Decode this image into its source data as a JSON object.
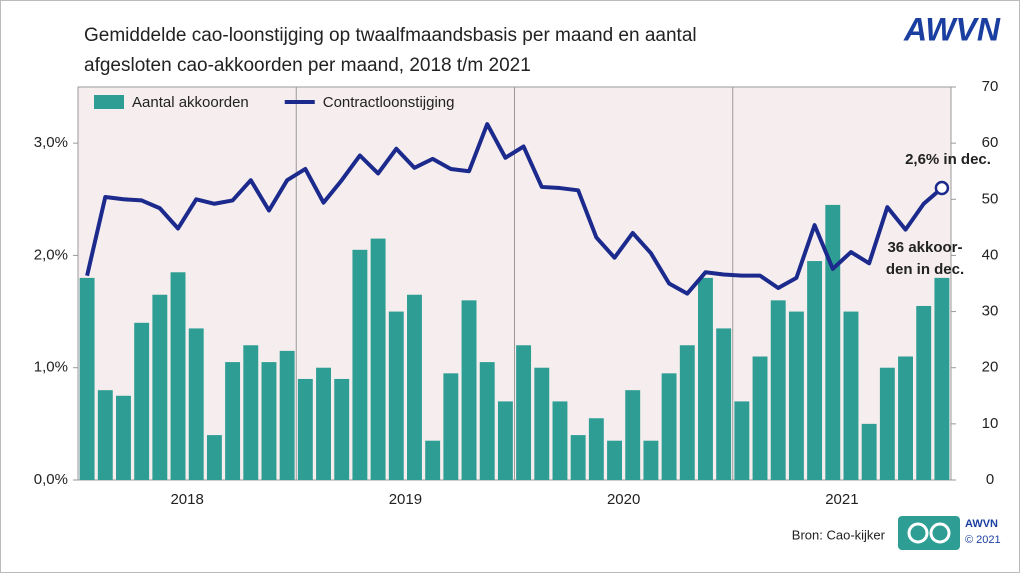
{
  "chart_data": {
    "type": "bar-line",
    "title": [
      "Gemiddelde cao-loonstijging op twaalfmaandsbasis per maand en aantal",
      "afgesloten cao-akkoorden per maand, 2018 t/m 2021"
    ],
    "logo": "AWVN",
    "source": "Bron: Cao-kijker",
    "footer_logo": [
      "AWVN",
      "© 2021"
    ],
    "categories": [
      null,
      null,
      null,
      null,
      null,
      null,
      null,
      null,
      null,
      null,
      null,
      null,
      null,
      null,
      null,
      null,
      null,
      null,
      null,
      null,
      null,
      null,
      null,
      null,
      null,
      null,
      null,
      null,
      null,
      null,
      null,
      null,
      null,
      null,
      null,
      null,
      null,
      null,
      null,
      null,
      null,
      null,
      null,
      null,
      null,
      null,
      null,
      null
    ],
    "year_labels": [
      "2018",
      "2019",
      "2020",
      "2021"
    ],
    "series": [
      {
        "name": "Aantal akkoorden",
        "type": "bar",
        "axis": "y2",
        "color": "#2e9e94",
        "values": [
          36,
          16,
          15,
          28,
          33,
          37,
          27,
          8,
          21,
          24,
          21,
          23,
          18,
          20,
          18,
          41,
          43,
          30,
          33,
          7,
          19,
          32,
          21,
          14,
          24,
          20,
          14,
          8,
          11,
          7,
          16,
          7,
          19,
          24,
          36,
          27,
          14,
          22,
          32,
          30,
          39,
          49,
          30,
          10,
          20,
          22,
          31,
          36
        ]
      },
      {
        "name": "Contractloonstijging",
        "type": "line",
        "axis": "y",
        "color": "#1b2a8c",
        "values": [
          1.82,
          2.52,
          2.5,
          2.49,
          2.42,
          2.24,
          2.5,
          2.46,
          2.49,
          2.67,
          2.4,
          2.67,
          2.77,
          2.47,
          2.67,
          2.89,
          2.73,
          2.95,
          2.78,
          2.86,
          2.77,
          2.75,
          3.17,
          2.87,
          2.97,
          2.61,
          2.6,
          2.58,
          2.16,
          1.98,
          2.2,
          2.02,
          1.75,
          1.66,
          1.85,
          1.83,
          1.82,
          1.82,
          1.71,
          1.8,
          2.27,
          1.88,
          2.03,
          1.93,
          2.43,
          2.23,
          2.46,
          2.6
        ]
      }
    ],
    "ylim": [
      0,
      3.5
    ],
    "yticks": [
      {
        "value": 0,
        "label": "0,0%"
      },
      {
        "value": 1,
        "label": "1,0%"
      },
      {
        "value": 2,
        "label": "2,0%"
      },
      {
        "value": 3,
        "label": "3,0%"
      }
    ],
    "y2lim": [
      0,
      70
    ],
    "y2ticks": [
      0,
      10,
      20,
      30,
      40,
      50,
      60,
      70
    ],
    "annotations": [
      [
        "2,6% in dec."
      ],
      [
        "36 akkoor-",
        "den in dec."
      ]
    ],
    "grid": false,
    "legend": "top-left"
  }
}
